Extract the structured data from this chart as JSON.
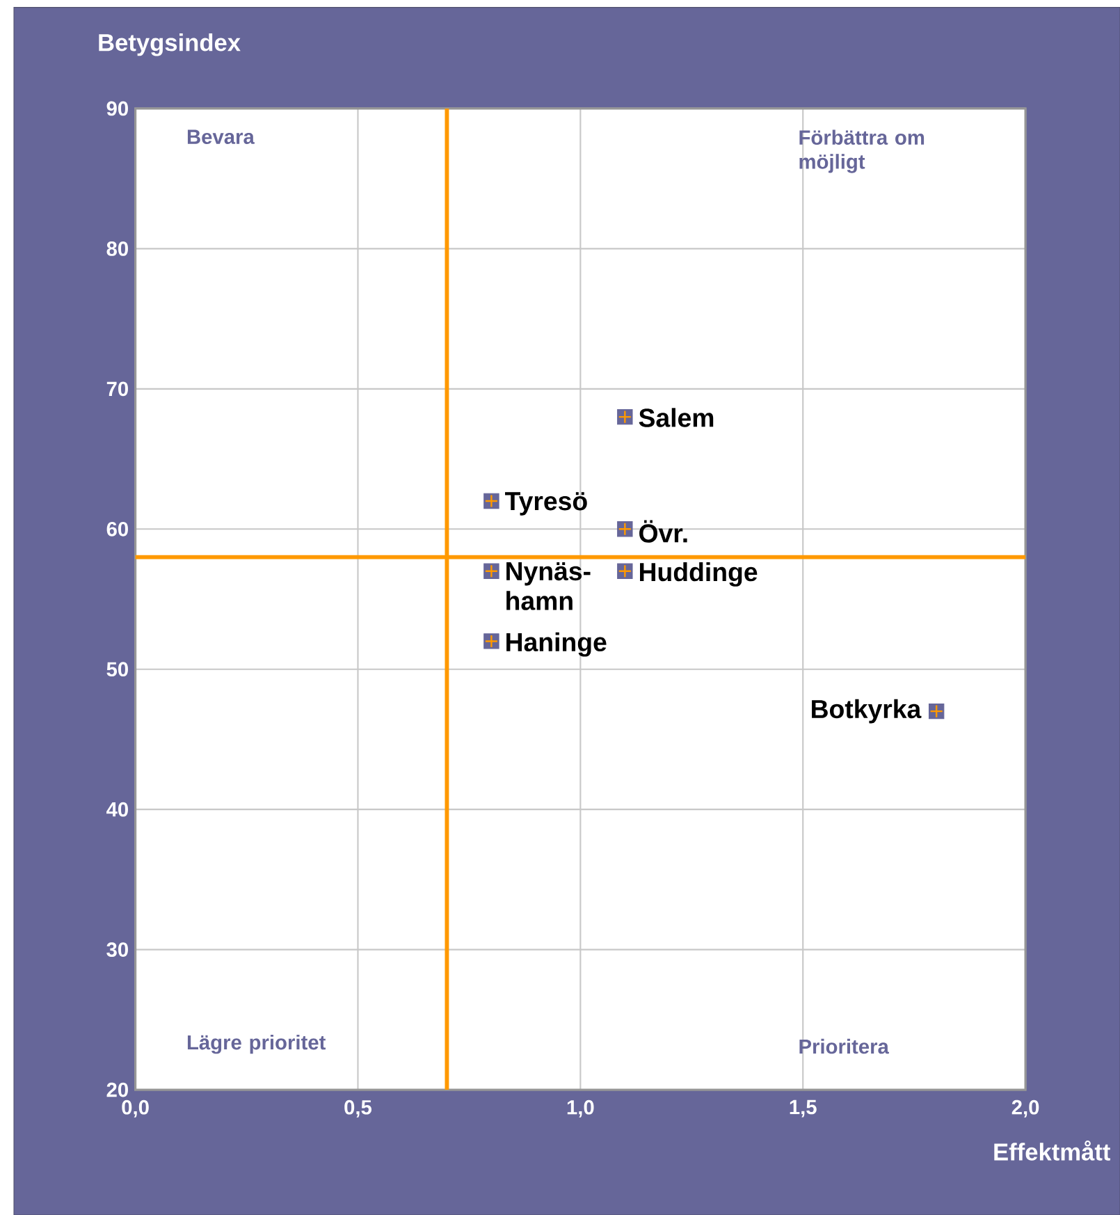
{
  "chart_data": {
    "type": "scatter",
    "xlabel": "Effektmått",
    "ylabel": "Betygsindex",
    "x": [
      1.1,
      0.8,
      1.1,
      0.8,
      1.1,
      0.8,
      1.8
    ],
    "values": [
      68,
      62,
      60,
      57,
      57,
      52,
      47
    ],
    "color": "#666699",
    "marker": "square",
    "xlim": [
      0,
      2
    ],
    "ylim": [
      20,
      90
    ],
    "xticks": [
      {
        "value": 0,
        "label": "0,0"
      },
      {
        "value": 0.5,
        "label": "0,5"
      },
      {
        "value": 1,
        "label": "1,0"
      },
      {
        "value": 1.5,
        "label": "1,5"
      },
      {
        "value": 2,
        "label": "2,0"
      }
    ],
    "yticks": [
      20,
      30,
      40,
      50,
      60,
      70,
      80,
      90
    ],
    "grid": true,
    "ref_lines": [
      {
        "axis": "x",
        "value": 0.7,
        "color": "#ff9900"
      },
      {
        "axis": "y",
        "value": 58,
        "color": "#ff9900"
      }
    ],
    "annotations": [
      "Bevara",
      "Förbättra om möjligt",
      "Lägre prioritet",
      "Prioritera",
      {
        "text": "Salem",
        "x": 1.1,
        "y": 68
      },
      {
        "text": "Tyresö",
        "x": 0.8,
        "y": 62
      },
      {
        "text": "Övr.",
        "x": 1.1,
        "y": 60
      },
      {
        "text": "Nynäs-hamn",
        "x": 0.8,
        "y": 57
      },
      {
        "text": "Huddinge",
        "x": 1.1,
        "y": 57
      },
      {
        "text": "Haninge",
        "x": 0.8,
        "y": 52
      },
      {
        "text": "Botkyrka",
        "x": 1.8,
        "y": 47
      }
    ]
  }
}
